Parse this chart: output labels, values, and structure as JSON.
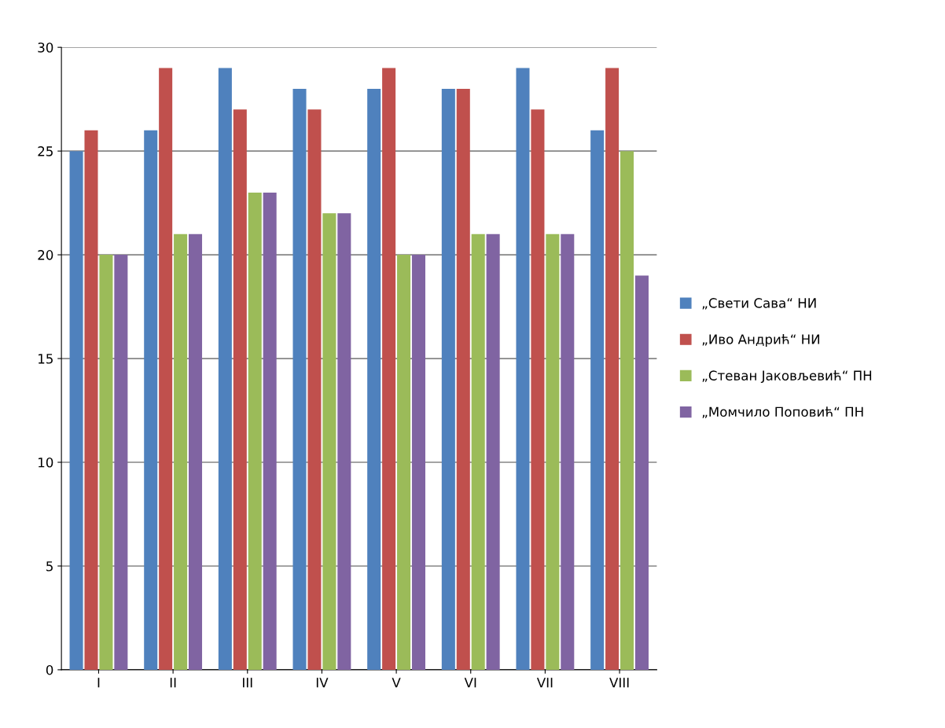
{
  "chart_data": {
    "type": "bar",
    "categories": [
      "I",
      "II",
      "III",
      "IV",
      "V",
      "VI",
      "VII",
      "VIII"
    ],
    "series": [
      {
        "name": "„Свети Сава“ НИ",
        "color": "#4f81bd",
        "values": [
          25,
          26,
          29,
          28,
          28,
          28,
          29,
          26
        ]
      },
      {
        "name": "„Иво Андрић“ НИ",
        "color": "#c0504d",
        "values": [
          26,
          29,
          27,
          27,
          29,
          28,
          27,
          29
        ]
      },
      {
        "name": "„Стеван Јаковљевић“ ПН",
        "color": "#9bbb59",
        "values": [
          20,
          21,
          23,
          22,
          20,
          21,
          21,
          25
        ]
      },
      {
        "name": "„Момчило Поповић“ ПН",
        "color": "#8064a2",
        "values": [
          20,
          21,
          23,
          22,
          20,
          21,
          21,
          19
        ]
      }
    ],
    "ylim": [
      0,
      30
    ],
    "yticks": [
      0,
      5,
      10,
      15,
      20,
      25,
      30
    ],
    "grid": "y",
    "legend": "right"
  }
}
